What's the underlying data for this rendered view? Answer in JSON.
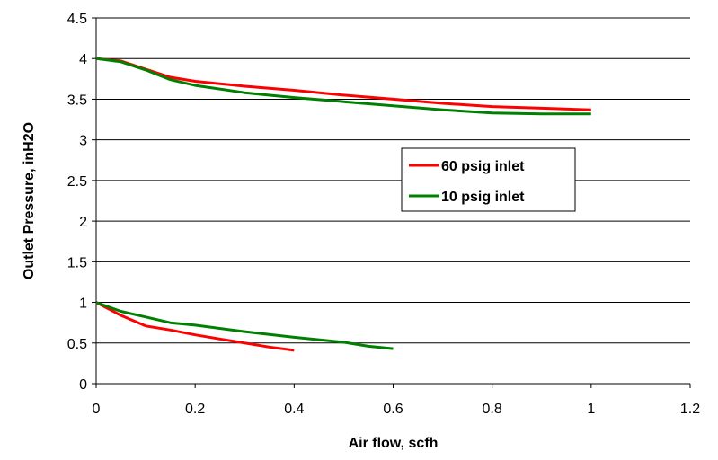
{
  "chart_data": {
    "type": "line",
    "title": "",
    "xlabel": "Air flow, scfh",
    "ylabel": "Outlet Pressure, inH2O",
    "xlim": [
      0,
      1.2
    ],
    "ylim": [
      0,
      4.5
    ],
    "xticks": [
      0,
      0.2,
      0.4,
      0.6,
      0.8,
      1,
      1.2
    ],
    "yticks": [
      0,
      0.5,
      1,
      1.5,
      2,
      2.5,
      3,
      3.5,
      4,
      4.5
    ],
    "grid": "horizontal",
    "legend_position": "center-right",
    "series": [
      {
        "name": "60 psig inlet",
        "color": "#ff0000",
        "segments": [
          {
            "x": [
              0,
              0.05,
              0.1,
              0.15,
              0.2,
              0.3,
              0.4,
              0.5,
              0.6,
              0.7,
              0.8,
              0.9,
              1.0
            ],
            "y": [
              4.0,
              3.97,
              3.87,
              3.77,
              3.72,
              3.66,
              3.61,
              3.55,
              3.5,
              3.45,
              3.41,
              3.39,
              3.37
            ]
          },
          {
            "x": [
              0,
              0.05,
              0.1,
              0.15,
              0.2,
              0.25,
              0.3,
              0.35,
              0.4
            ],
            "y": [
              1.0,
              0.84,
              0.71,
              0.66,
              0.6,
              0.55,
              0.5,
              0.45,
              0.41
            ]
          }
        ]
      },
      {
        "name": "10 psig inlet",
        "color": "#008000",
        "segments": [
          {
            "x": [
              0,
              0.05,
              0.1,
              0.15,
              0.2,
              0.3,
              0.4,
              0.5,
              0.6,
              0.7,
              0.8,
              0.9,
              1.0
            ],
            "y": [
              4.0,
              3.96,
              3.86,
              3.74,
              3.67,
              3.58,
              3.52,
              3.47,
              3.42,
              3.37,
              3.33,
              3.32,
              3.32
            ]
          },
          {
            "x": [
              0,
              0.05,
              0.1,
              0.15,
              0.2,
              0.3,
              0.4,
              0.5,
              0.55,
              0.6
            ],
            "y": [
              1.0,
              0.89,
              0.82,
              0.75,
              0.72,
              0.64,
              0.57,
              0.51,
              0.46,
              0.43
            ]
          }
        ]
      }
    ]
  }
}
